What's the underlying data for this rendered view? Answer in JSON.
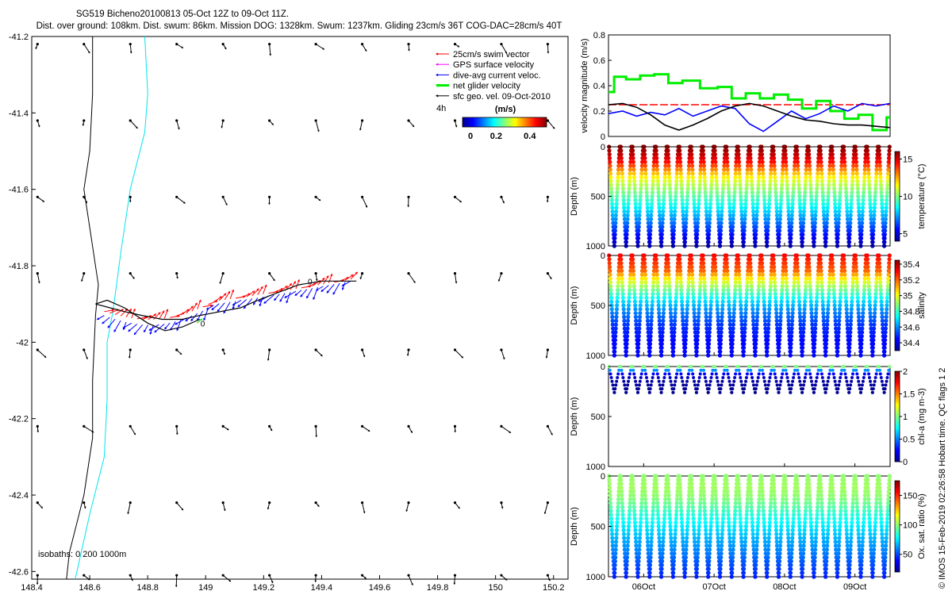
{
  "header": {
    "title": "SG519 Bicheno20100813 05-Oct 12Z to 09-Oct 11Z.",
    "subtitle": "Dist. over ground: 108km. Dist. swum: 86km. Mission DOG: 1328km. Swum: 1237km. Gliding 23cm/s 36T COG-DAC=28cm/s 40T"
  },
  "colors": {
    "swim": "#ff0000",
    "gps": "#ff00ff",
    "dac": "#0000ff",
    "net": "#00ee00",
    "geo": "#000000",
    "iso_200": "#00e5ee",
    "iso_0": "#000000"
  },
  "copyright": "© IMOS 15-Feb-2019 02:26:58 Hobart time. QC flags 1  2",
  "chart_data": [
    {
      "id": "map",
      "type": "scatter",
      "xlim": [
        148.4,
        150.25
      ],
      "ylim": [
        -42.62,
        -41.2
      ],
      "xticks": [
        "148.4",
        "148.6",
        "148.8",
        "149",
        "149.2",
        "149.4",
        "149.6",
        "149.8",
        "150",
        "150.2"
      ],
      "xtick_values": [
        148.4,
        148.6,
        148.8,
        149.0,
        149.2,
        149.4,
        149.6,
        149.8,
        150.0,
        150.2
      ],
      "yticks": [
        "-41.2",
        "-41.4",
        "-41.6",
        "-41.8",
        "-42",
        "-42.2",
        "-42.4",
        "-42.6"
      ],
      "ytick_values": [
        -41.2,
        -41.4,
        -41.6,
        -41.8,
        -42.0,
        -42.2,
        -42.4,
        -42.6
      ],
      "legend": {
        "position": "top-right",
        "entries": [
          {
            "label": "25cm/s swim vector",
            "color": "#ff0000"
          },
          {
            "label": "GPS surface velocity",
            "color": "#ff00ff"
          },
          {
            "label": "dive-avg current veloc.",
            "color": "#0000ff"
          },
          {
            "label": "net glider velocity",
            "color": "#00ee00"
          },
          {
            "label": "sfc geo. vel. 09-Oct-2010",
            "color": "#000000"
          }
        ],
        "tag": "4h"
      },
      "colorbar": {
        "label": "(m/s)",
        "ticks": [
          "0",
          "0.2",
          "0.4"
        ],
        "range": [
          0,
          0.5
        ]
      },
      "isobath_label": "isobaths: 0    200  1000m",
      "isobath_0m": [
        [
          148.61,
          -41.2
        ],
        [
          148.61,
          -41.35
        ],
        [
          148.6,
          -41.5
        ],
        [
          148.58,
          -41.6
        ],
        [
          148.6,
          -41.7
        ],
        [
          148.63,
          -41.85
        ],
        [
          148.62,
          -41.93
        ],
        [
          148.61,
          -42.1
        ],
        [
          148.61,
          -42.25
        ],
        [
          148.58,
          -42.4
        ],
        [
          148.53,
          -42.55
        ],
        [
          148.52,
          -42.62
        ]
      ],
      "isobath_200m": [
        [
          148.79,
          -41.2
        ],
        [
          148.8,
          -41.35
        ],
        [
          148.79,
          -41.45
        ],
        [
          148.74,
          -41.6
        ],
        [
          148.71,
          -41.75
        ],
        [
          148.68,
          -41.92
        ],
        [
          148.66,
          -42.0
        ],
        [
          148.66,
          -42.15
        ],
        [
          148.65,
          -42.3
        ],
        [
          148.6,
          -42.45
        ],
        [
          148.55,
          -42.62
        ]
      ],
      "track": [
        [
          148.62,
          -41.9
        ],
        [
          148.67,
          -41.91
        ],
        [
          148.72,
          -41.92
        ],
        [
          148.78,
          -41.93
        ],
        [
          148.85,
          -41.94
        ],
        [
          148.92,
          -41.94
        ],
        [
          148.98,
          -41.93
        ],
        [
          149.05,
          -41.92
        ],
        [
          149.12,
          -41.91
        ],
        [
          149.18,
          -41.89
        ],
        [
          149.25,
          -41.87
        ],
        [
          149.32,
          -41.85
        ],
        [
          149.4,
          -41.84
        ],
        [
          149.52,
          -41.84
        ]
      ],
      "track_return": [
        [
          148.62,
          -41.9
        ],
        [
          148.66,
          -41.89
        ],
        [
          148.72,
          -41.91
        ],
        [
          148.8,
          -41.95
        ],
        [
          148.86,
          -41.97
        ],
        [
          148.92,
          -41.96
        ],
        [
          148.98,
          -41.94
        ]
      ],
      "waypoints": [
        {
          "label": "0",
          "lon": 149.36,
          "lat": -41.84
        },
        {
          "label": "0",
          "lon": 148.99,
          "lat": -41.95
        }
      ],
      "swim_vectors": {
        "lon_start": 148.65,
        "lon_end": 149.5,
        "count": 46,
        "direction_deg": 40
      },
      "geo_grid": {
        "lons": [
          148.42,
          148.58,
          148.74,
          148.9,
          149.06,
          149.22,
          149.38,
          149.54,
          149.7,
          149.86,
          150.02,
          150.18
        ],
        "lats": [
          -41.22,
          -41.42,
          -41.62,
          -41.82,
          -42.02,
          -42.22,
          -42.42,
          -42.61
        ],
        "speed_ms": 0.08
      }
    },
    {
      "id": "velocity",
      "type": "line",
      "ylabel": "velocity magnitude (m/s)",
      "ylim": [
        0,
        0.8
      ],
      "yticks": [
        "0",
        "0.2",
        "0.4",
        "0.6",
        "0.8"
      ],
      "tick_values": [
        0,
        0.2,
        0.4,
        0.6,
        0.8
      ],
      "tlim": [
        0,
        4
      ],
      "series": [
        {
          "color": "#ff0000",
          "dashed": true,
          "x": [
            0,
            4
          ],
          "y": [
            0.25,
            0.25
          ]
        },
        {
          "color": "#00ee00",
          "step": true,
          "x": [
            0,
            0.08,
            0.25,
            0.45,
            0.65,
            0.85,
            1.05,
            1.3,
            1.55,
            1.75,
            1.95,
            2.15,
            2.35,
            2.55,
            2.75,
            2.95,
            3.15,
            3.35,
            3.55,
            3.75,
            3.95,
            4.0
          ],
          "y": [
            0.35,
            0.47,
            0.45,
            0.48,
            0.49,
            0.42,
            0.44,
            0.38,
            0.39,
            0.3,
            0.34,
            0.3,
            0.33,
            0.29,
            0.22,
            0.28,
            0.2,
            0.14,
            0.17,
            0.05,
            0.15,
            0.15
          ]
        },
        {
          "color": "#0000ff",
          "x": [
            0,
            0.2,
            0.4,
            0.6,
            0.8,
            1.0,
            1.2,
            1.4,
            1.6,
            1.8,
            2.0,
            2.2,
            2.4,
            2.6,
            2.8,
            3.0,
            3.2,
            3.4,
            3.6,
            3.8,
            4.0
          ],
          "y": [
            0.18,
            0.2,
            0.16,
            0.19,
            0.17,
            0.22,
            0.16,
            0.2,
            0.24,
            0.22,
            0.1,
            0.04,
            0.12,
            0.2,
            0.14,
            0.18,
            0.24,
            0.2,
            0.26,
            0.24,
            0.26
          ]
        },
        {
          "color": "#000000",
          "x": [
            0,
            0.2,
            0.4,
            0.6,
            0.8,
            1.0,
            1.2,
            1.4,
            1.6,
            1.8,
            2.0,
            2.2,
            2.4,
            2.6,
            2.8,
            3.0,
            3.2,
            3.4,
            3.6,
            3.8,
            4.0
          ],
          "y": [
            0.25,
            0.26,
            0.23,
            0.17,
            0.09,
            0.05,
            0.09,
            0.14,
            0.2,
            0.24,
            0.26,
            0.24,
            0.2,
            0.16,
            0.13,
            0.12,
            0.1,
            0.09,
            0.09,
            0.08,
            0.07
          ]
        }
      ]
    },
    {
      "id": "temperature",
      "type": "scatter",
      "ylabel": "Depth (m)",
      "yticks": [
        "0",
        "500",
        "1000"
      ],
      "tick_values": [
        0,
        500,
        1000
      ],
      "cbar_label": "temperature (°C)",
      "cbar_ticks": [
        "15",
        "10",
        "5"
      ],
      "cbar_tick_values": [
        15,
        10,
        5
      ],
      "clim": [
        4,
        16
      ],
      "cycles": 24,
      "profile": [
        [
          0,
          16
        ],
        [
          150,
          14.5
        ],
        [
          250,
          12.5
        ],
        [
          350,
          11
        ],
        [
          450,
          10
        ],
        [
          550,
          9
        ],
        [
          650,
          8
        ],
        [
          750,
          7
        ],
        [
          850,
          6
        ],
        [
          1000,
          4.5
        ]
      ]
    },
    {
      "id": "salinity",
      "type": "scatter",
      "ylabel": "Depth (m)",
      "yticks": [
        "0",
        "500",
        "1000"
      ],
      "tick_values": [
        0,
        500,
        1000
      ],
      "cbar_label": "salinity",
      "cbar_ticks": [
        "35.4",
        "35.2",
        "35",
        "34.8",
        "34.6",
        "34.4"
      ],
      "cbar_tick_values": [
        35.4,
        35.2,
        35.0,
        34.8,
        34.6,
        34.4
      ],
      "clim": [
        34.3,
        35.45
      ],
      "cycles": 24,
      "profile": [
        [
          0,
          35.3
        ],
        [
          150,
          35.2
        ],
        [
          250,
          35.0
        ],
        [
          350,
          34.85
        ],
        [
          450,
          34.7
        ],
        [
          550,
          34.6
        ],
        [
          700,
          34.5
        ],
        [
          850,
          34.45
        ],
        [
          1000,
          34.45
        ]
      ]
    },
    {
      "id": "chla",
      "type": "scatter",
      "ylabel": "Depth (m)",
      "yticks": [
        "0",
        "500",
        "1000"
      ],
      "tick_values": [
        0,
        500,
        1000
      ],
      "cbar_label": "chl-a (mg m-3)",
      "cbar_ticks": [
        "2",
        "1.5",
        "1",
        "0.5",
        "0"
      ],
      "cbar_tick_values": [
        2,
        1.5,
        1,
        0.5,
        0
      ],
      "clim": [
        0,
        2
      ],
      "cycles": 24,
      "profile": [
        [
          0,
          1.0
        ],
        [
          30,
          0.6
        ],
        [
          60,
          0.3
        ],
        [
          100,
          0.15
        ],
        [
          150,
          0.08
        ],
        [
          200,
          0.05
        ],
        [
          250,
          0.03
        ]
      ]
    },
    {
      "id": "oxygen",
      "type": "scatter",
      "ylabel": "Depth (m)",
      "yticks": [
        "0",
        "500",
        "1000"
      ],
      "tick_values": [
        0,
        500,
        1000
      ],
      "cbar_label": "Ox. sat. ratio (%)",
      "cbar_ticks": [
        "150",
        "100",
        "50"
      ],
      "cbar_tick_values": [
        150,
        100,
        50
      ],
      "clim": [
        20,
        175
      ],
      "cycles": 24,
      "xticks": [
        "06Oct",
        "07Oct",
        "08Oct",
        "09Oct"
      ],
      "xtick_values": [
        0.5,
        1.5,
        2.5,
        3.5
      ],
      "profile": [
        [
          0,
          100
        ],
        [
          100,
          103
        ],
        [
          200,
          100
        ],
        [
          300,
          92
        ],
        [
          400,
          82
        ],
        [
          500,
          75
        ],
        [
          600,
          68
        ],
        [
          700,
          62
        ],
        [
          800,
          56
        ],
        [
          900,
          50
        ],
        [
          1000,
          44
        ]
      ]
    }
  ]
}
